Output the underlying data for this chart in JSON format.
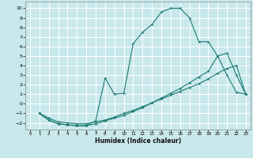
{
  "xlabel": "Humidex (Indice chaleur)",
  "background_color": "#c8e8ec",
  "grid_color": "#ffffff",
  "line_color": "#1a7a6e",
  "xlim": [
    -0.5,
    23.5
  ],
  "ylim": [
    -2.7,
    10.7
  ],
  "xticks": [
    0,
    1,
    2,
    3,
    4,
    5,
    6,
    7,
    8,
    9,
    10,
    11,
    12,
    13,
    14,
    15,
    16,
    17,
    18,
    19,
    20,
    21,
    22,
    23
  ],
  "yticks": [
    -2,
    -1,
    0,
    1,
    2,
    3,
    4,
    5,
    6,
    7,
    8,
    9,
    10
  ],
  "line1_x": [
    1,
    2,
    3,
    4,
    5,
    6,
    7,
    8,
    9,
    10,
    11,
    12,
    13,
    14,
    15,
    16,
    17,
    18,
    19,
    20,
    21,
    22,
    23
  ],
  "line1_y": [
    -1.0,
    -1.7,
    -2.1,
    -2.2,
    -2.3,
    -2.3,
    -1.8,
    2.7,
    1.0,
    1.1,
    6.3,
    7.5,
    8.3,
    9.6,
    10.0,
    10.0,
    9.0,
    6.5,
    6.5,
    5.0,
    3.0,
    1.2,
    1.0
  ],
  "line2_x": [
    1,
    2,
    3,
    4,
    5,
    6,
    7,
    8,
    9,
    10,
    11,
    12,
    13,
    14,
    15,
    16,
    17,
    18,
    19,
    20,
    21,
    22,
    23
  ],
  "line2_y": [
    -1.0,
    -1.7,
    -2.1,
    -2.2,
    -2.3,
    -2.3,
    -2.1,
    -1.8,
    -1.5,
    -1.2,
    -0.8,
    -0.4,
    0.1,
    0.6,
    1.1,
    1.6,
    2.2,
    2.8,
    3.4,
    5.0,
    5.3,
    3.0,
    1.0
  ],
  "line3_x": [
    1,
    2,
    3,
    4,
    5,
    6,
    7,
    8,
    9,
    10,
    11,
    12,
    13,
    14,
    15,
    16,
    17,
    18,
    19,
    20,
    21,
    22,
    23
  ],
  "line3_y": [
    -1.0,
    -1.5,
    -1.9,
    -2.0,
    -2.1,
    -2.1,
    -1.9,
    -1.7,
    -1.4,
    -1.0,
    -0.7,
    -0.3,
    0.1,
    0.5,
    0.9,
    1.3,
    1.7,
    2.1,
    2.6,
    3.2,
    3.7,
    4.0,
    1.0
  ]
}
